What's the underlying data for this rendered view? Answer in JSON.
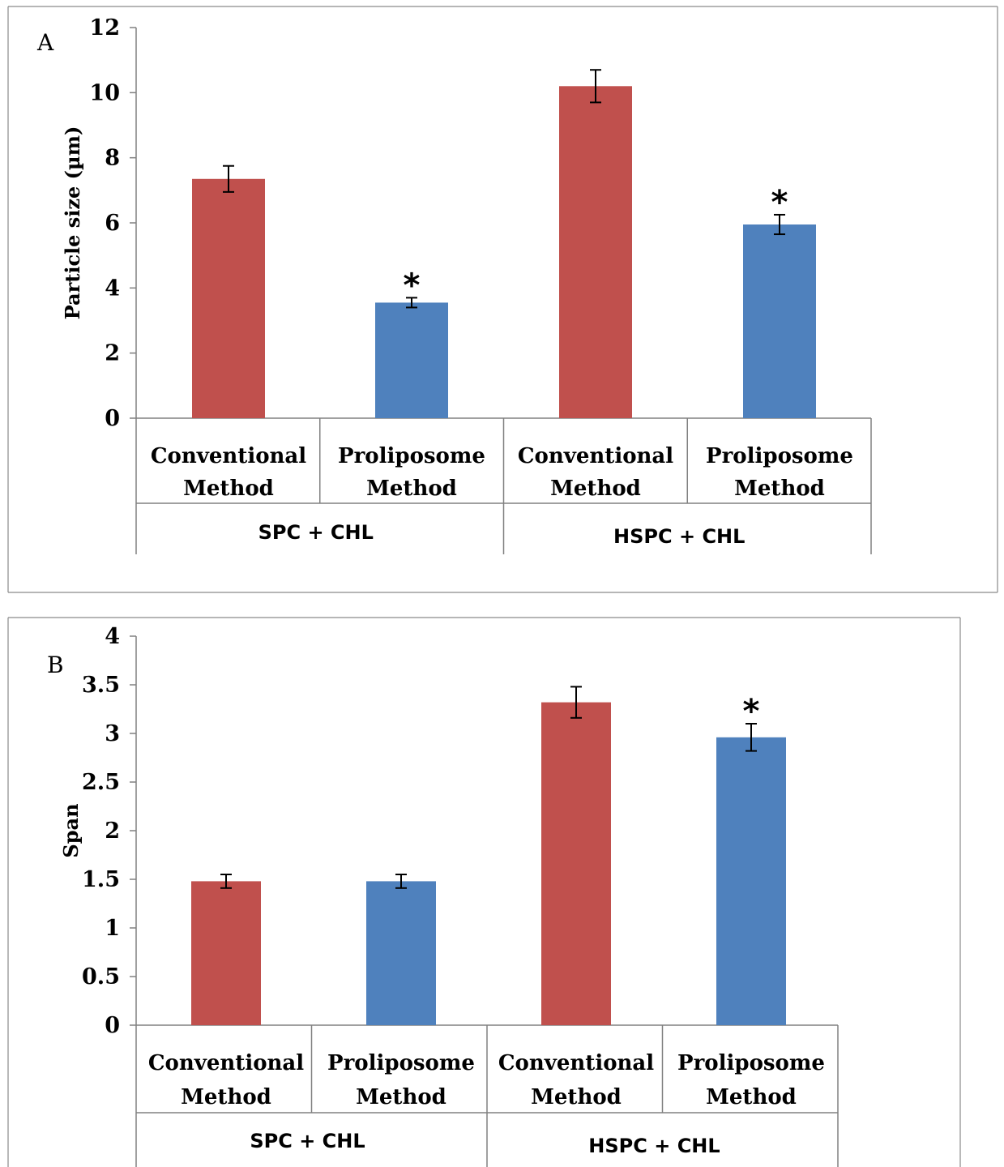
{
  "chart_data": [
    {
      "type": "bar",
      "panel_label": "A",
      "ylabel": "Particle size (µm)",
      "ylim": [
        0,
        12
      ],
      "yticks": [
        "0",
        "2",
        "4",
        "6",
        "8",
        "10",
        "12"
      ],
      "categories": [
        {
          "line1": "Conventional",
          "line2": "Method"
        },
        {
          "line1": "Proliposome",
          "line2": "Method"
        },
        {
          "line1": "Conventional",
          "line2": "Method"
        },
        {
          "line1": "Proliposome",
          "line2": "Method"
        }
      ],
      "groups": [
        "SPC + CHL",
        "HSPC + CHL"
      ],
      "values": [
        7.35,
        3.55,
        10.2,
        5.95
      ],
      "errors": [
        0.4,
        0.15,
        0.5,
        0.3
      ],
      "significance": [
        "",
        "*",
        "",
        "*"
      ],
      "colors": [
        "#c0504d",
        "#4f81bd",
        "#c0504d",
        "#4f81bd"
      ]
    },
    {
      "type": "bar",
      "panel_label": "B",
      "ylabel": "Span",
      "ylim": [
        0,
        4
      ],
      "yticks": [
        "0",
        "0.5",
        "1",
        "1.5",
        "2",
        "2.5",
        "3",
        "3.5",
        "4"
      ],
      "categories": [
        {
          "line1": "Conventional",
          "line2": "Method"
        },
        {
          "line1": "Proliposome",
          "line2": "Method"
        },
        {
          "line1": "Conventional",
          "line2": "Method"
        },
        {
          "line1": "Proliposome",
          "line2": "Method"
        }
      ],
      "groups": [
        "SPC + CHL",
        "HSPC + CHL"
      ],
      "values": [
        1.48,
        1.48,
        3.32,
        2.96
      ],
      "errors": [
        0.07,
        0.07,
        0.16,
        0.14
      ],
      "significance": [
        "",
        "",
        "",
        "*"
      ],
      "colors": [
        "#c0504d",
        "#4f81bd",
        "#c0504d",
        "#4f81bd"
      ]
    }
  ]
}
